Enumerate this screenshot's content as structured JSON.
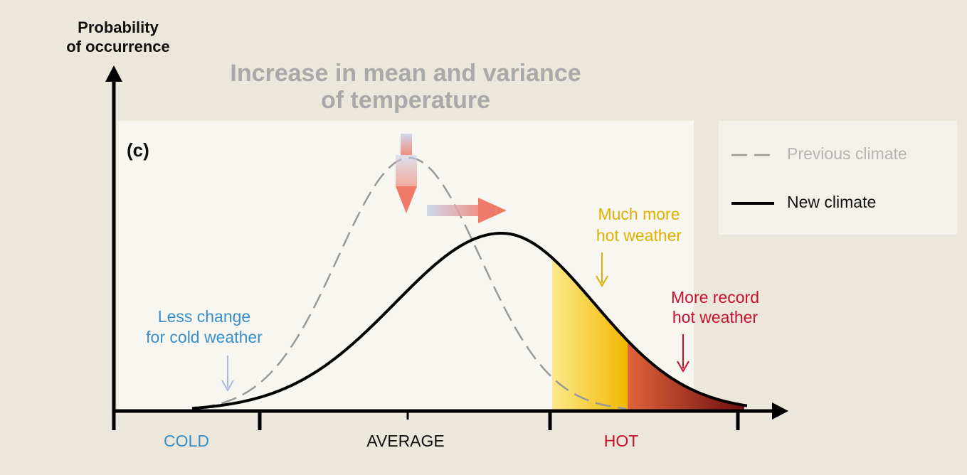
{
  "axis_label": [
    "Probability",
    "of occurrence"
  ],
  "title": [
    "Increase in mean and variance",
    "of temperature"
  ],
  "panel_label": "(c)",
  "legend": [
    "Previous climate",
    "New climate"
  ],
  "annotations": {
    "hot": [
      "Much more",
      "hot weather"
    ],
    "record": [
      "More record",
      "hot weather"
    ],
    "cold": [
      "Less change",
      "for cold weather"
    ]
  },
  "x_labels": [
    "COLD",
    "AVERAGE",
    "HOT"
  ]
}
